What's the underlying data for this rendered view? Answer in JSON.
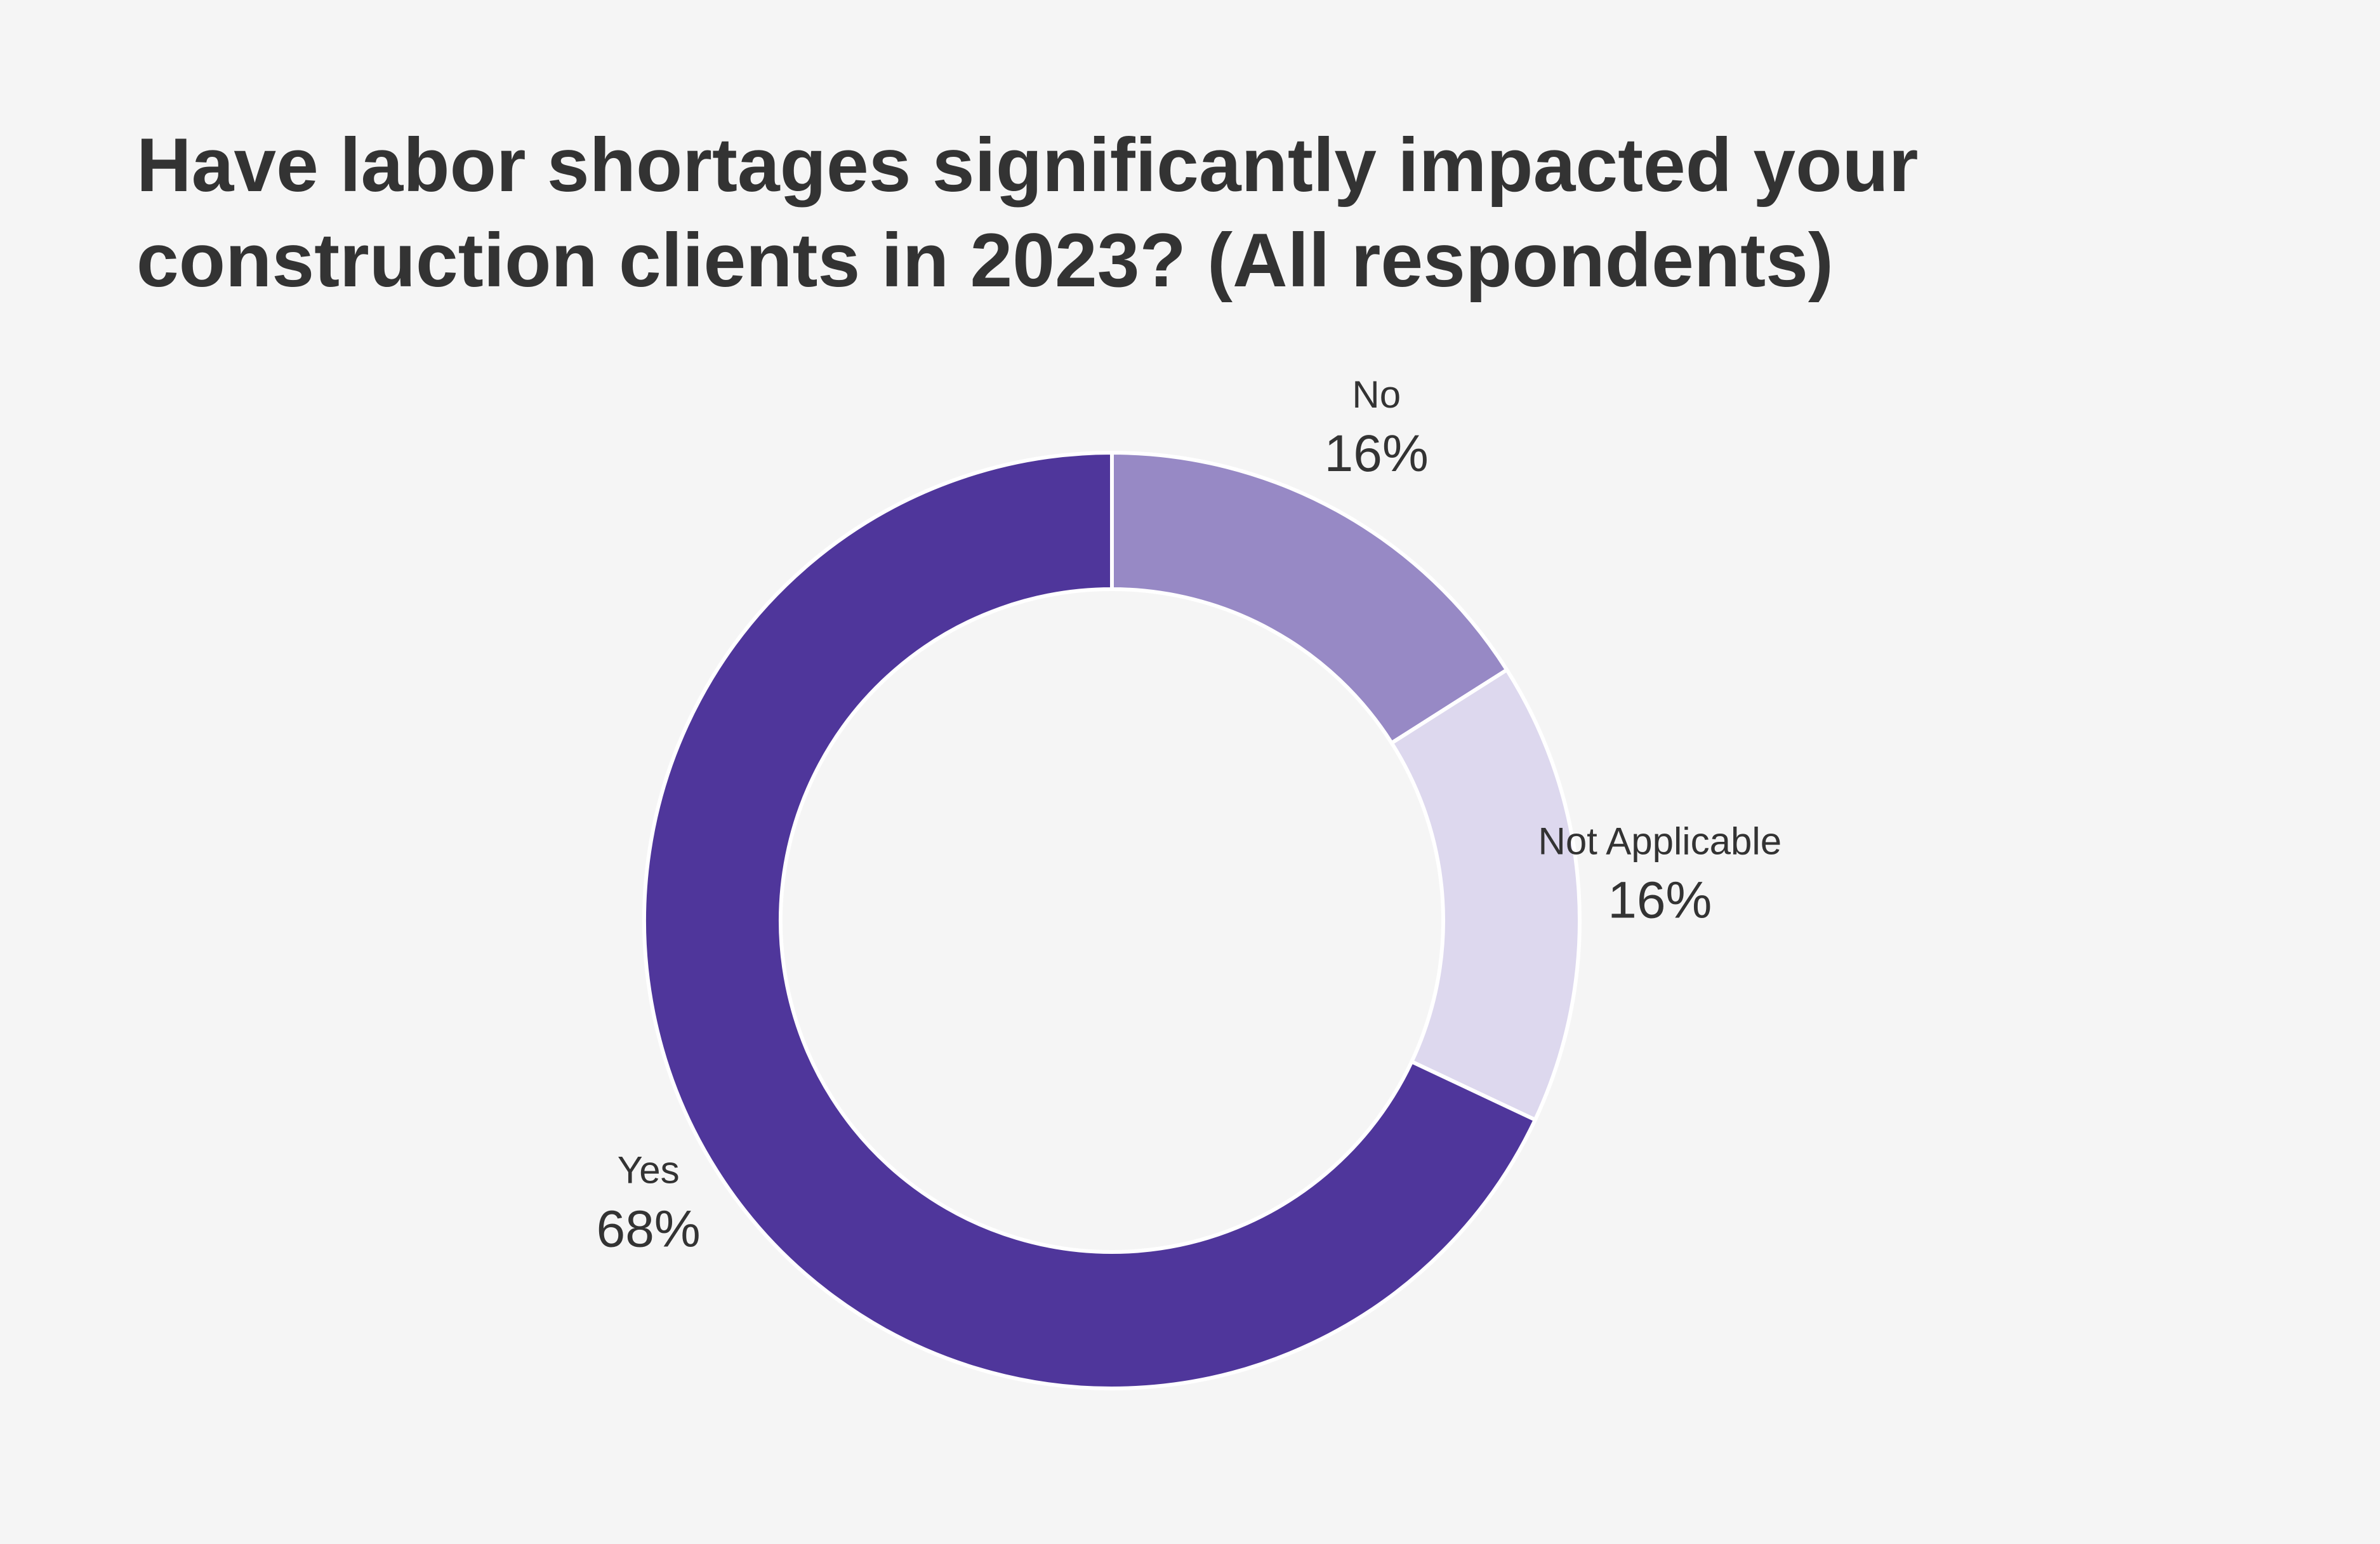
{
  "chart_data": {
    "type": "pie",
    "title_lines": [
      "Have labor shortages significantly impacted your",
      "construction clients in 2023? (All respondents)"
    ],
    "donut": true,
    "legend": "none",
    "slices": [
      {
        "name": "No",
        "value": 16,
        "label": "16%",
        "color": "#9789c5"
      },
      {
        "name": "Not Applicable",
        "value": 16,
        "label": "16%",
        "color": "#ddd8ee"
      },
      {
        "name": "Yes",
        "value": 68,
        "label": "68%",
        "color": "#4f369b"
      }
    ],
    "colors": {
      "background": "#f5f5f5",
      "text": "#333333",
      "separator": "#ffffff"
    }
  }
}
